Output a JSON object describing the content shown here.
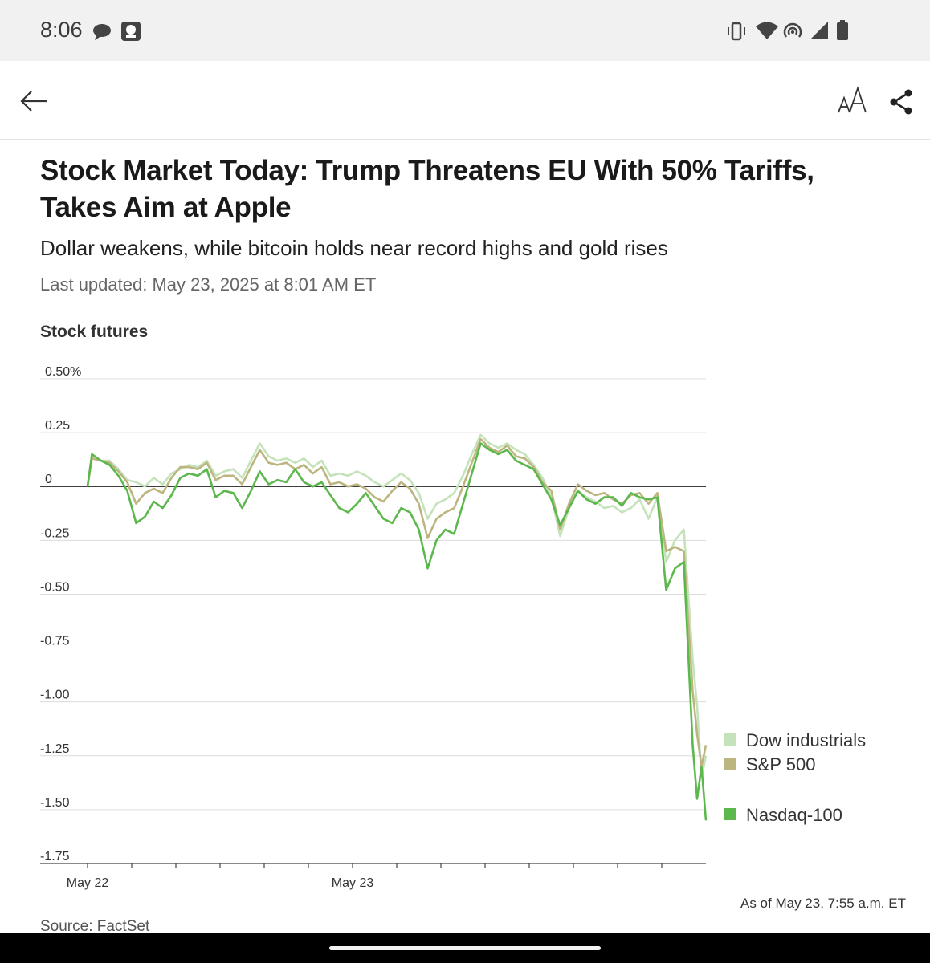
{
  "status_bar": {
    "time": "8:06"
  },
  "article": {
    "headline": "Stock Market Today: Trump Threatens EU With 50% Tariffs, Takes Aim at Apple",
    "dek": "Dollar weakens, while bitcoin holds near record highs and gold rises",
    "updated": "Last updated: May 23, 2025 at 8:01 AM ET"
  },
  "chart_data": {
    "type": "line",
    "title": "Stock futures",
    "ylim": [
      -1.75,
      0.5
    ],
    "yticks": [
      0.5,
      0.25,
      0,
      -0.25,
      -0.5,
      -0.75,
      -1.0,
      -1.25,
      -1.5,
      -1.75
    ],
    "ytick_labels": [
      "0.50%",
      "0.25",
      "0",
      "-0.25",
      "-0.50",
      "-0.75",
      "-1.00",
      "-1.25",
      "-1.50",
      "-1.75"
    ],
    "x_labels": [
      {
        "label": "May 22",
        "t": 0
      },
      {
        "label": "May 23",
        "t": 6
      }
    ],
    "x_range": [
      0,
      14
    ],
    "x_unit": "hours from the start of the May 22 session",
    "legend_position": "right",
    "series": [
      {
        "name": "Dow industrials",
        "color": "#c5e3bb",
        "t": [
          0,
          0.1,
          0.3,
          0.5,
          0.7,
          0.9,
          1.1,
          1.3,
          1.5,
          1.7,
          1.9,
          2.1,
          2.3,
          2.5,
          2.7,
          2.9,
          3.1,
          3.3,
          3.5,
          3.7,
          3.9,
          4.1,
          4.3,
          4.5,
          4.7,
          4.9,
          5.1,
          5.3,
          5.5,
          5.7,
          5.9,
          6.1,
          6.3,
          6.5,
          6.7,
          6.9,
          7.1,
          7.3,
          7.5,
          7.7,
          7.9,
          8.1,
          8.3,
          8.5,
          8.7,
          8.9,
          9.1,
          9.3,
          9.5,
          9.7,
          9.9,
          10.1,
          10.3,
          10.5,
          10.7,
          10.9,
          11.1,
          11.3,
          11.5,
          11.7,
          11.9,
          12.1,
          12.3,
          12.5,
          12.7,
          12.9,
          13.1,
          13.3,
          13.5,
          13.7,
          13.8,
          13.9,
          14.0
        ],
        "values": [
          0.0,
          0.14,
          0.12,
          0.12,
          0.08,
          0.03,
          0.02,
          0.0,
          0.04,
          0.01,
          0.06,
          0.08,
          0.1,
          0.09,
          0.12,
          0.05,
          0.07,
          0.08,
          0.04,
          0.12,
          0.2,
          0.14,
          0.12,
          0.13,
          0.11,
          0.13,
          0.09,
          0.12,
          0.05,
          0.06,
          0.05,
          0.07,
          0.05,
          0.02,
          0.0,
          0.03,
          0.06,
          0.03,
          -0.03,
          -0.15,
          -0.08,
          -0.06,
          -0.03,
          0.05,
          0.15,
          0.24,
          0.2,
          0.18,
          0.2,
          0.17,
          0.15,
          0.1,
          0.04,
          -0.05,
          -0.23,
          -0.1,
          -0.02,
          -0.05,
          -0.07,
          -0.1,
          -0.09,
          -0.12,
          -0.1,
          -0.06,
          -0.15,
          -0.05,
          -0.35,
          -0.25,
          -0.2,
          -0.8,
          -1.02,
          -1.35,
          -1.25
        ]
      },
      {
        "name": "S&P 500",
        "color": "#bdb580",
        "t": [
          0,
          0.1,
          0.3,
          0.5,
          0.7,
          0.9,
          1.1,
          1.3,
          1.5,
          1.7,
          1.9,
          2.1,
          2.3,
          2.5,
          2.7,
          2.9,
          3.1,
          3.3,
          3.5,
          3.7,
          3.9,
          4.1,
          4.3,
          4.5,
          4.7,
          4.9,
          5.1,
          5.3,
          5.5,
          5.7,
          5.9,
          6.1,
          6.3,
          6.5,
          6.7,
          6.9,
          7.1,
          7.3,
          7.5,
          7.7,
          7.9,
          8.1,
          8.3,
          8.5,
          8.7,
          8.9,
          9.1,
          9.3,
          9.5,
          9.7,
          9.9,
          10.1,
          10.3,
          10.5,
          10.7,
          10.9,
          11.1,
          11.3,
          11.5,
          11.7,
          11.9,
          12.1,
          12.3,
          12.5,
          12.7,
          12.9,
          13.1,
          13.3,
          13.5,
          13.7,
          13.8,
          13.9,
          14.0
        ],
        "values": [
          0.0,
          0.13,
          0.12,
          0.11,
          0.07,
          0.02,
          -0.08,
          -0.03,
          -0.01,
          -0.03,
          0.04,
          0.09,
          0.09,
          0.08,
          0.11,
          0.03,
          0.05,
          0.05,
          0.01,
          0.09,
          0.17,
          0.11,
          0.1,
          0.11,
          0.08,
          0.1,
          0.06,
          0.09,
          0.01,
          0.02,
          0.0,
          0.01,
          -0.01,
          -0.05,
          -0.07,
          -0.02,
          0.02,
          -0.01,
          -0.08,
          -0.24,
          -0.15,
          -0.12,
          -0.1,
          0.0,
          0.11,
          0.22,
          0.18,
          0.16,
          0.19,
          0.14,
          0.13,
          0.09,
          0.02,
          -0.02,
          -0.2,
          -0.08,
          0.01,
          -0.02,
          -0.04,
          -0.03,
          -0.06,
          -0.08,
          -0.04,
          -0.03,
          -0.08,
          -0.03,
          -0.3,
          -0.28,
          -0.3,
          -0.95,
          -1.15,
          -1.3,
          -1.2
        ]
      },
      {
        "name": "Nasdaq-100",
        "color": "#5cb84c",
        "t": [
          0,
          0.1,
          0.3,
          0.5,
          0.7,
          0.9,
          1.1,
          1.3,
          1.5,
          1.7,
          1.9,
          2.1,
          2.3,
          2.5,
          2.7,
          2.9,
          3.1,
          3.3,
          3.5,
          3.7,
          3.9,
          4.1,
          4.3,
          4.5,
          4.7,
          4.9,
          5.1,
          5.3,
          5.5,
          5.7,
          5.9,
          6.1,
          6.3,
          6.5,
          6.7,
          6.9,
          7.1,
          7.3,
          7.5,
          7.7,
          7.9,
          8.1,
          8.3,
          8.5,
          8.7,
          8.9,
          9.1,
          9.3,
          9.5,
          9.7,
          9.9,
          10.1,
          10.3,
          10.5,
          10.7,
          10.9,
          11.1,
          11.3,
          11.5,
          11.7,
          11.9,
          12.1,
          12.3,
          12.5,
          12.7,
          12.9,
          13.1,
          13.3,
          13.5,
          13.7,
          13.8,
          13.9,
          14.0
        ],
        "values": [
          0.0,
          0.15,
          0.12,
          0.1,
          0.05,
          -0.02,
          -0.17,
          -0.14,
          -0.07,
          -0.1,
          -0.04,
          0.04,
          0.06,
          0.05,
          0.08,
          -0.05,
          -0.02,
          -0.03,
          -0.1,
          -0.02,
          0.07,
          0.01,
          0.03,
          0.02,
          0.08,
          0.02,
          0.0,
          0.02,
          -0.04,
          -0.1,
          -0.12,
          -0.08,
          -0.03,
          -0.09,
          -0.15,
          -0.17,
          -0.1,
          -0.12,
          -0.2,
          -0.38,
          -0.25,
          -0.2,
          -0.22,
          -0.08,
          0.06,
          0.2,
          0.17,
          0.15,
          0.17,
          0.12,
          0.1,
          0.08,
          0.01,
          -0.06,
          -0.18,
          -0.1,
          -0.02,
          -0.06,
          -0.08,
          -0.05,
          -0.05,
          -0.09,
          -0.03,
          -0.05,
          -0.06,
          -0.05,
          -0.48,
          -0.38,
          -0.35,
          -1.2,
          -1.45,
          -1.3,
          -1.55
        ]
      }
    ]
  },
  "chart_meta": {
    "asof": "As of May 23, 7:55 a.m. ET",
    "source": "Source: FactSet"
  }
}
